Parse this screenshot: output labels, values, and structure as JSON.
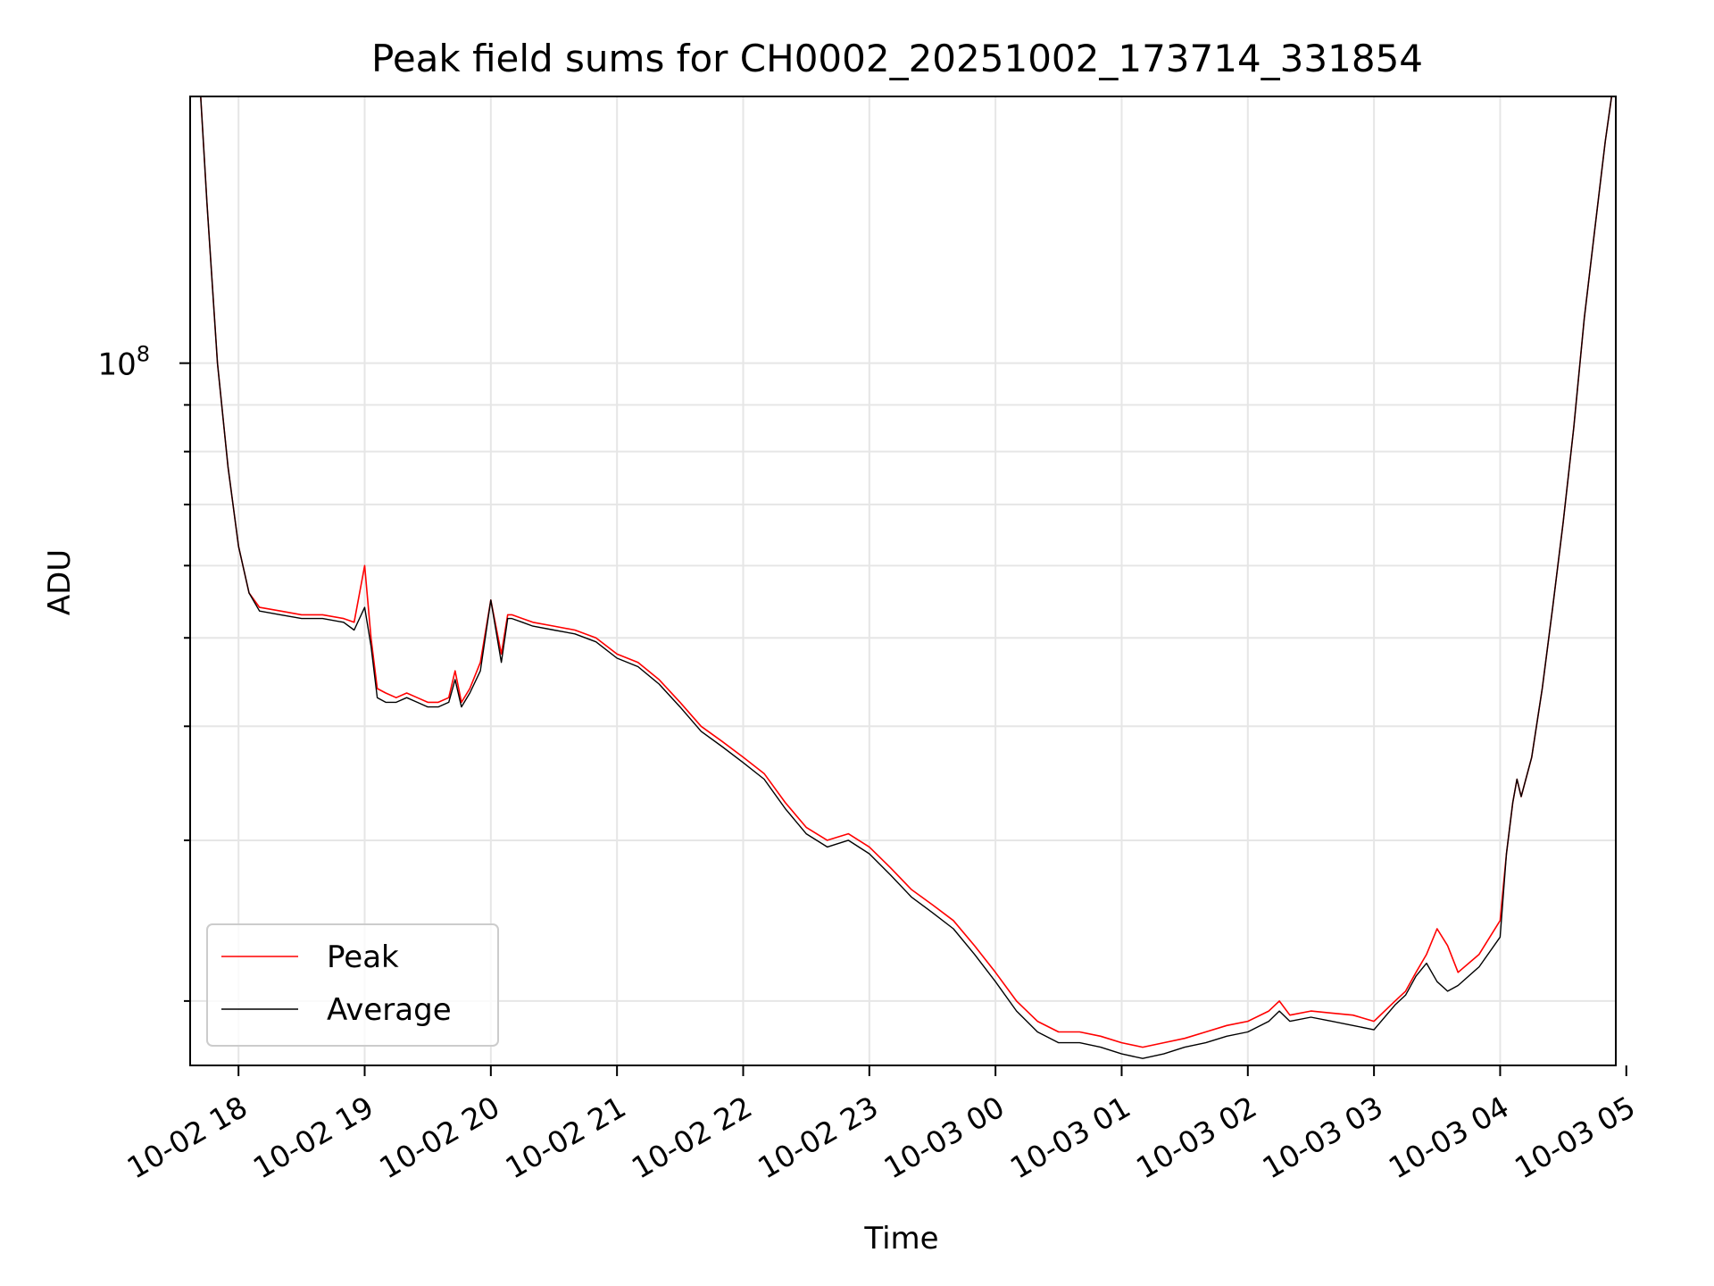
{
  "chart_data": {
    "type": "line",
    "title": "Peak field sums for CH0002_20251002_173714_331854",
    "xlabel": "Time",
    "ylabel": "ADU",
    "x_ticks": [
      "10-02 18",
      "10-02 19",
      "10-02 20",
      "10-02 21",
      "10-02 22",
      "10-02 23",
      "10-03 00",
      "10-03 01",
      "10-03 02",
      "10-03 03",
      "10-03 04",
      "10-03 05"
    ],
    "x_tick_times": [
      "2025-10-02 18:00",
      "2025-10-02 19:00",
      "2025-10-02 20:00",
      "2025-10-02 21:00",
      "2025-10-02 22:00",
      "2025-10-02 23:00",
      "2025-10-03 00:00",
      "2025-10-03 01:00",
      "2025-10-03 02:00",
      "2025-10-03 03:00",
      "2025-10-03 04:00",
      "2025-10-03 05:00"
    ],
    "y_scale": "log",
    "y_major_tick_label": "10",
    "y_major_tick_exponent": "8",
    "y_major_tick_value": 100000000,
    "y_minor_ticks": [
      20000000,
      30000000,
      40000000,
      50000000,
      60000000,
      70000000,
      80000000,
      90000000,
      200000000
    ],
    "xlim": [
      "2025-10-02 17:37",
      "2025-10-03 04:55"
    ],
    "ylim": [
      17000000,
      196000000
    ],
    "grid": true,
    "legend_position": "lower-left",
    "series": [
      {
        "name": "Peak",
        "color": "#ff0000",
        "x": [
          "2025-10-02 17:42",
          "2025-10-02 17:45",
          "2025-10-02 17:50",
          "2025-10-02 17:55",
          "2025-10-02 18:00",
          "2025-10-02 18:05",
          "2025-10-02 18:10",
          "2025-10-02 18:20",
          "2025-10-02 18:30",
          "2025-10-02 18:40",
          "2025-10-02 18:50",
          "2025-10-02 18:55",
          "2025-10-02 19:00",
          "2025-10-02 19:03",
          "2025-10-02 19:06",
          "2025-10-02 19:10",
          "2025-10-02 19:15",
          "2025-10-02 19:20",
          "2025-10-02 19:25",
          "2025-10-02 19:30",
          "2025-10-02 19:35",
          "2025-10-02 19:40",
          "2025-10-02 19:43",
          "2025-10-02 19:46",
          "2025-10-02 19:50",
          "2025-10-02 19:55",
          "2025-10-02 20:00",
          "2025-10-02 20:05",
          "2025-10-02 20:08",
          "2025-10-02 20:10",
          "2025-10-02 20:15",
          "2025-10-02 20:20",
          "2025-10-02 20:30",
          "2025-10-02 20:40",
          "2025-10-02 20:50",
          "2025-10-02 21:00",
          "2025-10-02 21:10",
          "2025-10-02 21:20",
          "2025-10-02 21:30",
          "2025-10-02 21:40",
          "2025-10-02 21:50",
          "2025-10-02 22:00",
          "2025-10-02 22:10",
          "2025-10-02 22:20",
          "2025-10-02 22:30",
          "2025-10-02 22:40",
          "2025-10-02 22:50",
          "2025-10-02 23:00",
          "2025-10-02 23:10",
          "2025-10-02 23:20",
          "2025-10-02 23:30",
          "2025-10-02 23:40",
          "2025-10-02 23:50",
          "2025-10-03 00:00",
          "2025-10-03 00:10",
          "2025-10-03 00:20",
          "2025-10-03 00:30",
          "2025-10-03 00:40",
          "2025-10-03 00:50",
          "2025-10-03 01:00",
          "2025-10-03 01:10",
          "2025-10-03 01:20",
          "2025-10-03 01:30",
          "2025-10-03 01:40",
          "2025-10-03 01:50",
          "2025-10-03 02:00",
          "2025-10-03 02:10",
          "2025-10-03 02:15",
          "2025-10-03 02:20",
          "2025-10-03 02:30",
          "2025-10-03 02:40",
          "2025-10-03 02:50",
          "2025-10-03 03:00",
          "2025-10-03 03:10",
          "2025-10-03 03:15",
          "2025-10-03 03:20",
          "2025-10-03 03:25",
          "2025-10-03 03:30",
          "2025-10-03 03:35",
          "2025-10-03 03:40",
          "2025-10-03 03:50",
          "2025-10-03 04:00",
          "2025-10-03 04:03",
          "2025-10-03 04:06",
          "2025-10-03 04:08",
          "2025-10-03 04:10",
          "2025-10-03 04:15",
          "2025-10-03 04:20",
          "2025-10-03 04:25",
          "2025-10-03 04:30",
          "2025-10-03 04:35",
          "2025-10-03 04:40",
          "2025-10-03 04:45",
          "2025-10-03 04:50",
          "2025-10-03 04:53"
        ],
        "y": [
          196000000,
          150000000,
          100000000,
          77000000,
          63000000,
          56000000,
          54000000,
          53500000,
          53000000,
          53000000,
          52500000,
          52000000,
          60000000,
          50000000,
          44000000,
          43500000,
          43000000,
          43500000,
          43000000,
          42500000,
          42500000,
          43000000,
          46000000,
          42500000,
          44000000,
          47000000,
          55000000,
          48000000,
          53000000,
          53000000,
          52500000,
          52000000,
          51500000,
          51000000,
          50000000,
          48000000,
          47000000,
          45000000,
          42500000,
          40000000,
          38500000,
          37000000,
          35500000,
          33000000,
          31000000,
          30000000,
          30500000,
          29500000,
          28000000,
          26500000,
          25500000,
          24500000,
          23000000,
          21500000,
          20000000,
          19000000,
          18500000,
          18500000,
          18300000,
          18000000,
          17800000,
          18000000,
          18200000,
          18500000,
          18800000,
          19000000,
          19500000,
          20000000,
          19300000,
          19500000,
          19400000,
          19300000,
          19000000,
          20000000,
          20500000,
          21500000,
          22500000,
          24000000,
          23000000,
          21500000,
          22500000,
          24500000,
          29000000,
          33000000,
          35000000,
          33500000,
          37000000,
          44000000,
          54000000,
          67000000,
          85000000,
          112000000,
          140000000,
          175000000,
          196000000
        ]
      },
      {
        "name": "Average",
        "color": "#000000",
        "x": [
          "2025-10-02 17:42",
          "2025-10-02 17:45",
          "2025-10-02 17:50",
          "2025-10-02 17:55",
          "2025-10-02 18:00",
          "2025-10-02 18:05",
          "2025-10-02 18:10",
          "2025-10-02 18:20",
          "2025-10-02 18:30",
          "2025-10-02 18:40",
          "2025-10-02 18:50",
          "2025-10-02 18:55",
          "2025-10-02 19:00",
          "2025-10-02 19:03",
          "2025-10-02 19:06",
          "2025-10-02 19:10",
          "2025-10-02 19:15",
          "2025-10-02 19:20",
          "2025-10-02 19:25",
          "2025-10-02 19:30",
          "2025-10-02 19:35",
          "2025-10-02 19:40",
          "2025-10-02 19:43",
          "2025-10-02 19:46",
          "2025-10-02 19:50",
          "2025-10-02 19:55",
          "2025-10-02 20:00",
          "2025-10-02 20:05",
          "2025-10-02 20:08",
          "2025-10-02 20:10",
          "2025-10-02 20:15",
          "2025-10-02 20:20",
          "2025-10-02 20:30",
          "2025-10-02 20:40",
          "2025-10-02 20:50",
          "2025-10-02 21:00",
          "2025-10-02 21:10",
          "2025-10-02 21:20",
          "2025-10-02 21:30",
          "2025-10-02 21:40",
          "2025-10-02 21:50",
          "2025-10-02 22:00",
          "2025-10-02 22:10",
          "2025-10-02 22:20",
          "2025-10-02 22:30",
          "2025-10-02 22:40",
          "2025-10-02 22:50",
          "2025-10-02 23:00",
          "2025-10-02 23:10",
          "2025-10-02 23:20",
          "2025-10-02 23:30",
          "2025-10-02 23:40",
          "2025-10-02 23:50",
          "2025-10-03 00:00",
          "2025-10-03 00:10",
          "2025-10-03 00:20",
          "2025-10-03 00:30",
          "2025-10-03 00:40",
          "2025-10-03 00:50",
          "2025-10-03 01:00",
          "2025-10-03 01:10",
          "2025-10-03 01:20",
          "2025-10-03 01:30",
          "2025-10-03 01:40",
          "2025-10-03 01:50",
          "2025-10-03 02:00",
          "2025-10-03 02:10",
          "2025-10-03 02:15",
          "2025-10-03 02:20",
          "2025-10-03 02:30",
          "2025-10-03 02:40",
          "2025-10-03 02:50",
          "2025-10-03 03:00",
          "2025-10-03 03:10",
          "2025-10-03 03:15",
          "2025-10-03 03:20",
          "2025-10-03 03:25",
          "2025-10-03 03:30",
          "2025-10-03 03:35",
          "2025-10-03 03:40",
          "2025-10-03 03:50",
          "2025-10-03 04:00",
          "2025-10-03 04:03",
          "2025-10-03 04:06",
          "2025-10-03 04:08",
          "2025-10-03 04:10",
          "2025-10-03 04:15",
          "2025-10-03 04:20",
          "2025-10-03 04:25",
          "2025-10-03 04:30",
          "2025-10-03 04:35",
          "2025-10-03 04:40",
          "2025-10-03 04:45",
          "2025-10-03 04:50",
          "2025-10-03 04:53"
        ],
        "y": [
          196000000,
          150000000,
          100000000,
          77000000,
          63000000,
          56000000,
          53500000,
          53000000,
          52500000,
          52500000,
          52000000,
          51000000,
          54000000,
          49000000,
          43000000,
          42500000,
          42500000,
          43000000,
          42500000,
          42000000,
          42000000,
          42500000,
          45000000,
          42000000,
          43500000,
          46000000,
          55000000,
          47000000,
          52500000,
          52500000,
          52000000,
          51500000,
          51000000,
          50500000,
          49500000,
          47500000,
          46500000,
          44500000,
          42000000,
          39500000,
          38000000,
          36500000,
          35000000,
          32500000,
          30500000,
          29500000,
          30000000,
          29000000,
          27500000,
          26000000,
          25000000,
          24000000,
          22500000,
          21000000,
          19500000,
          18500000,
          18000000,
          18000000,
          17800000,
          17500000,
          17300000,
          17500000,
          17800000,
          18000000,
          18300000,
          18500000,
          19000000,
          19500000,
          19000000,
          19200000,
          19000000,
          18800000,
          18600000,
          19800000,
          20300000,
          21300000,
          22000000,
          21000000,
          20500000,
          20800000,
          21800000,
          23500000,
          29000000,
          33000000,
          35000000,
          33500000,
          37000000,
          44000000,
          54000000,
          67000000,
          85000000,
          112000000,
          140000000,
          175000000,
          196000000
        ]
      }
    ]
  }
}
